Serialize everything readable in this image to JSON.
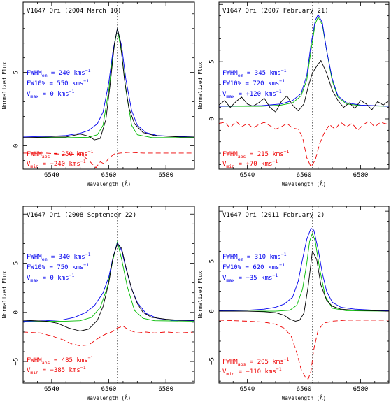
{
  "figure": {
    "colors": {
      "observed": "#000000",
      "emission_fit": "#0000ee",
      "gaussian_fit": "#00bb00",
      "absorption": "#ee0000",
      "rest_line": "#555555"
    }
  },
  "chart_data": [
    {
      "type": "line",
      "title": "V1647 Ori (2004 March 10)",
      "xlabel": "Wavelength (Å)",
      "ylabel": "Normalized Flux",
      "xlim": [
        6530,
        6590
      ],
      "ylim": [
        -1.6,
        9.8
      ],
      "xticks": [
        6540,
        6560,
        6580
      ],
      "yticks": [
        0,
        5
      ],
      "rest_wavelength": 6563,
      "annotations_emission": [
        "FWHM",
        "em",
        " = 240 kms",
        "−1",
        "FW10% = 550 kms",
        "−1",
        "V",
        "max",
        " = 0 kms",
        "−1"
      ],
      "annotations_absorption": [
        "FWHM",
        "abs",
        " = 250 kms",
        "−1",
        "V",
        "min",
        " = −240 kms",
        "−1"
      ],
      "series": [
        {
          "role": "observed",
          "x": [
            6530,
            6540,
            6545,
            6550,
            6553,
            6555,
            6557,
            6559,
            6560.5,
            6562,
            6563,
            6564,
            6565.5,
            6567,
            6569,
            6572,
            6576,
            6580,
            6585,
            6590
          ],
          "y": [
            0.55,
            0.6,
            0.6,
            0.8,
            0.65,
            0.4,
            0.5,
            1.8,
            4.2,
            7.0,
            8.0,
            7.2,
            4.5,
            2.6,
            1.5,
            0.9,
            0.7,
            0.65,
            0.6,
            0.6
          ]
        },
        {
          "role": "emission_fit",
          "x": [
            6530,
            6540,
            6545,
            6550,
            6553,
            6556,
            6558,
            6560,
            6561.5,
            6563,
            6564.5,
            6566,
            6568,
            6570,
            6573,
            6577,
            6582,
            6590
          ],
          "y": [
            0.6,
            0.65,
            0.7,
            0.85,
            1.05,
            1.5,
            2.3,
            4.3,
            6.5,
            8.0,
            6.8,
            4.5,
            2.4,
            1.4,
            0.9,
            0.7,
            0.65,
            0.6
          ]
        },
        {
          "role": "gaussian_fit",
          "x": [
            6530,
            6545,
            6553,
            6556,
            6558,
            6560,
            6561.5,
            6563,
            6564.5,
            6566,
            6568,
            6570,
            6575,
            6590
          ],
          "y": [
            0.55,
            0.55,
            0.58,
            0.75,
            1.4,
            3.8,
            6.3,
            8.0,
            6.3,
            3.8,
            1.4,
            0.75,
            0.56,
            0.55
          ]
        },
        {
          "role": "absorption",
          "x": [
            6530,
            6538,
            6545,
            6550,
            6553,
            6555.5,
            6557,
            6558.5,
            6560,
            6562,
            6564,
            6567,
            6572,
            6580,
            6590
          ],
          "y": [
            -0.5,
            -0.5,
            -0.6,
            -0.55,
            -1.0,
            -1.5,
            -1.1,
            -1.25,
            -0.85,
            -0.55,
            -0.5,
            -0.45,
            -0.5,
            -0.5,
            -0.5
          ]
        }
      ]
    },
    {
      "type": "line",
      "title": "V1647 Ori (2007 February 21)",
      "xlabel": "Wavelength (Å)",
      "ylabel": "Normalized Flux",
      "xlim": [
        6530,
        6590
      ],
      "ylim": [
        -4.4,
        10.2
      ],
      "xticks": [
        6540,
        6560,
        6580
      ],
      "yticks": [
        0,
        5
      ],
      "rest_wavelength": 6563,
      "annotations_emission": [
        "FWHM",
        "em",
        " = 345 kms",
        "−1",
        "FW10% = 720 kms",
        "−1",
        "V",
        "max",
        " = +120 kms",
        "−1"
      ],
      "annotations_absorption": [
        "FWHM",
        "abs",
        " = 215 kms",
        "−1",
        "V",
        "min",
        " = +70 kms",
        "−1"
      ],
      "series": [
        {
          "role": "observed",
          "x": [
            6530,
            6532,
            6534,
            6536,
            6538,
            6540,
            6542,
            6544,
            6546,
            6548,
            6550,
            6552,
            6554,
            6556,
            6558,
            6560,
            6561.5,
            6563,
            6564.5,
            6566,
            6568,
            6570,
            6572,
            6574,
            6576,
            6578,
            6580,
            6582,
            6584,
            6586,
            6588,
            6590
          ],
          "y": [
            1.2,
            1.6,
            1.0,
            1.5,
            1.9,
            1.3,
            1.1,
            1.4,
            1.8,
            1.0,
            0.6,
            1.5,
            2.0,
            1.2,
            0.7,
            1.3,
            2.8,
            4.0,
            4.6,
            5.1,
            4.0,
            2.5,
            1.6,
            1.0,
            1.4,
            0.9,
            1.6,
            1.3,
            0.8,
            1.5,
            1.2,
            1.6
          ]
        },
        {
          "role": "emission_fit",
          "x": [
            6530,
            6545,
            6552,
            6556,
            6559,
            6561,
            6562.5,
            6564,
            6565,
            6566.5,
            6568,
            6570,
            6572,
            6575,
            6580,
            6590
          ],
          "y": [
            1.1,
            1.15,
            1.3,
            1.6,
            2.2,
            3.8,
            6.5,
            8.6,
            9.1,
            8.4,
            6.0,
            3.5,
            2.0,
            1.4,
            1.2,
            1.1
          ]
        },
        {
          "role": "gaussian_fit",
          "x": [
            6530,
            6545,
            6552,
            6556,
            6559,
            6561,
            6562.5,
            6564,
            6565,
            6566.5,
            6568,
            6570,
            6572,
            6575,
            6580,
            6590
          ],
          "y": [
            1.1,
            1.1,
            1.2,
            1.4,
            2.0,
            3.4,
            6.0,
            8.3,
            8.9,
            8.2,
            6.0,
            3.3,
            1.9,
            1.3,
            1.15,
            1.1
          ]
        },
        {
          "role": "absorption",
          "x": [
            6530,
            6532,
            6534,
            6536,
            6538,
            6540,
            6542,
            6544,
            6546,
            6548,
            6550,
            6552,
            6554,
            6556,
            6558,
            6559.5,
            6561,
            6562.5,
            6564,
            6565.5,
            6567,
            6569,
            6571,
            6573,
            6575,
            6577,
            6579,
            6581,
            6583,
            6585,
            6587,
            6590
          ],
          "y": [
            -0.4,
            -0.3,
            -0.8,
            -0.2,
            -0.7,
            -0.4,
            -0.8,
            -0.5,
            -0.3,
            -0.6,
            -0.9,
            -0.7,
            -0.4,
            -0.8,
            -0.9,
            -1.6,
            -3.4,
            -4.2,
            -3.6,
            -2.2,
            -1.3,
            -0.5,
            -0.9,
            -0.3,
            -0.7,
            -0.4,
            -1.0,
            -0.5,
            -0.2,
            -0.7,
            -0.3,
            -0.5
          ]
        }
      ]
    },
    {
      "type": "line",
      "title": "V1647 Ori (2008 September 22)",
      "xlabel": "Wavelength (Å)",
      "ylabel": "Normalized Flux",
      "xlim": [
        6530,
        6590
      ],
      "ylim": [
        -7.2,
        10.8
      ],
      "xticks": [
        6540,
        6560,
        6580
      ],
      "yticks": [
        -5,
        0,
        5
      ],
      "rest_wavelength": 6563,
      "annotations_emission": [
        "FWHM",
        "em",
        " = 340 kms",
        "−1",
        "FW10% = 750 kms",
        "−1",
        "V",
        "max",
        " = 0 kms",
        "−1"
      ],
      "annotations_absorption": [
        "FWHM",
        "abs",
        " = 485 kms",
        "−1",
        "V",
        "min",
        " = −385 kms",
        "−1"
      ],
      "series": [
        {
          "role": "observed",
          "x": [
            6530,
            6538,
            6542,
            6546,
            6550,
            6553,
            6556,
            6558,
            6560,
            6561.5,
            6563,
            6564.5,
            6566,
            6568,
            6570,
            6572,
            6575,
            6580,
            6585,
            6590
          ],
          "y": [
            -0.8,
            -0.9,
            -1.1,
            -1.6,
            -1.9,
            -1.7,
            -0.8,
            0.6,
            3.0,
            5.6,
            7.0,
            6.5,
            4.6,
            2.4,
            0.9,
            0.0,
            -0.5,
            -0.7,
            -0.8,
            -0.8
          ]
        },
        {
          "role": "emission_fit",
          "x": [
            6530,
            6538,
            6544,
            6548,
            6552,
            6555,
            6558,
            6560,
            6561.5,
            6563,
            6564.5,
            6566,
            6568,
            6570,
            6573,
            6577,
            6582,
            6590
          ],
          "y": [
            -0.9,
            -0.85,
            -0.75,
            -0.5,
            0.0,
            0.7,
            2.0,
            3.6,
            5.6,
            7.1,
            6.3,
            4.5,
            2.4,
            1.0,
            -0.1,
            -0.6,
            -0.8,
            -0.85
          ]
        },
        {
          "role": "gaussian_fit",
          "x": [
            6530,
            6545,
            6550,
            6554,
            6557,
            6559.5,
            6561.5,
            6563,
            6564.5,
            6566.5,
            6569,
            6572,
            6576,
            6590
          ],
          "y": [
            -0.9,
            -0.9,
            -0.85,
            -0.5,
            0.5,
            2.6,
            5.4,
            7.2,
            5.4,
            2.6,
            0.2,
            -0.6,
            -0.85,
            -0.9
          ]
        },
        {
          "role": "absorption",
          "x": [
            6530,
            6536,
            6540,
            6544,
            6547,
            6550,
            6553,
            6555,
            6557,
            6559,
            6561,
            6563,
            6565,
            6567,
            6570,
            6573,
            6576,
            6580,
            6585,
            6590
          ],
          "y": [
            -2.0,
            -2.1,
            -2.4,
            -2.8,
            -3.2,
            -3.4,
            -3.3,
            -2.9,
            -2.5,
            -2.2,
            -2.0,
            -1.6,
            -1.4,
            -1.8,
            -2.1,
            -2.0,
            -2.1,
            -2.0,
            -2.1,
            -2.0
          ]
        }
      ]
    },
    {
      "type": "line",
      "title": "V1647 Ori (2011 February 2)",
      "xlabel": "Wavelength (Å)",
      "ylabel": "Normalized Flux",
      "xlim": [
        6530,
        6590
      ],
      "ylim": [
        -7.2,
        10.5
      ],
      "xticks": [
        6540,
        6560,
        6580
      ],
      "yticks": [
        -5,
        0,
        5
      ],
      "rest_wavelength": 6563,
      "annotations_emission": [
        "FWHM",
        "em",
        " = 310 kms",
        "−1",
        "FW10% = 620 kms",
        "−1",
        "V",
        "max",
        " = −35 kms",
        "−1"
      ],
      "annotations_absorption": [
        "FWHM",
        "abs",
        " = 205 kms",
        "−1",
        "V",
        "min",
        " = −110 kms",
        "−1"
      ],
      "series": [
        {
          "role": "observed",
          "x": [
            6530,
            6540,
            6546,
            6550,
            6553,
            6555,
            6557,
            6558.5,
            6560,
            6561.5,
            6563,
            6564.5,
            6566,
            6568,
            6570,
            6573,
            6578,
            6585,
            6590
          ],
          "y": [
            0.0,
            0.0,
            -0.05,
            -0.15,
            -0.4,
            -0.8,
            -1.0,
            -0.9,
            -0.2,
            2.5,
            6.0,
            5.2,
            2.6,
            1.1,
            0.5,
            0.2,
            0.1,
            0.05,
            0.0
          ]
        },
        {
          "role": "emission_fit",
          "x": [
            6530,
            6540,
            6546,
            6550,
            6553,
            6556,
            6558,
            6559.5,
            6561,
            6562.5,
            6563.5,
            6565,
            6566.5,
            6568,
            6570,
            6573,
            6578,
            6585,
            6590
          ],
          "y": [
            0.05,
            0.1,
            0.2,
            0.4,
            0.7,
            1.4,
            3.0,
            5.2,
            7.2,
            8.3,
            8.1,
            6.2,
            3.8,
            2.0,
            0.9,
            0.4,
            0.2,
            0.1,
            0.05
          ]
        },
        {
          "role": "gaussian_fit",
          "x": [
            6530,
            6550,
            6555,
            6557.5,
            6559.5,
            6561,
            6562,
            6563,
            6564,
            6565.5,
            6567.5,
            6570,
            6575,
            6590
          ],
          "y": [
            0.0,
            0.0,
            0.1,
            0.6,
            2.2,
            4.8,
            7.0,
            7.8,
            7.0,
            4.3,
            1.5,
            0.3,
            0.05,
            0.0
          ]
        },
        {
          "role": "absorption",
          "x": [
            6530,
            6540,
            6546,
            6550,
            6553,
            6555.5,
            6557.5,
            6559,
            6560.5,
            6561.5,
            6562.5,
            6563.5,
            6565,
            6567,
            6570,
            6575,
            6580,
            6590
          ],
          "y": [
            -0.9,
            -1.0,
            -1.1,
            -1.3,
            -1.7,
            -2.5,
            -4.2,
            -5.8,
            -6.6,
            -6.8,
            -6.0,
            -3.8,
            -1.9,
            -1.2,
            -1.0,
            -0.9,
            -0.9,
            -0.9
          ]
        }
      ]
    }
  ]
}
